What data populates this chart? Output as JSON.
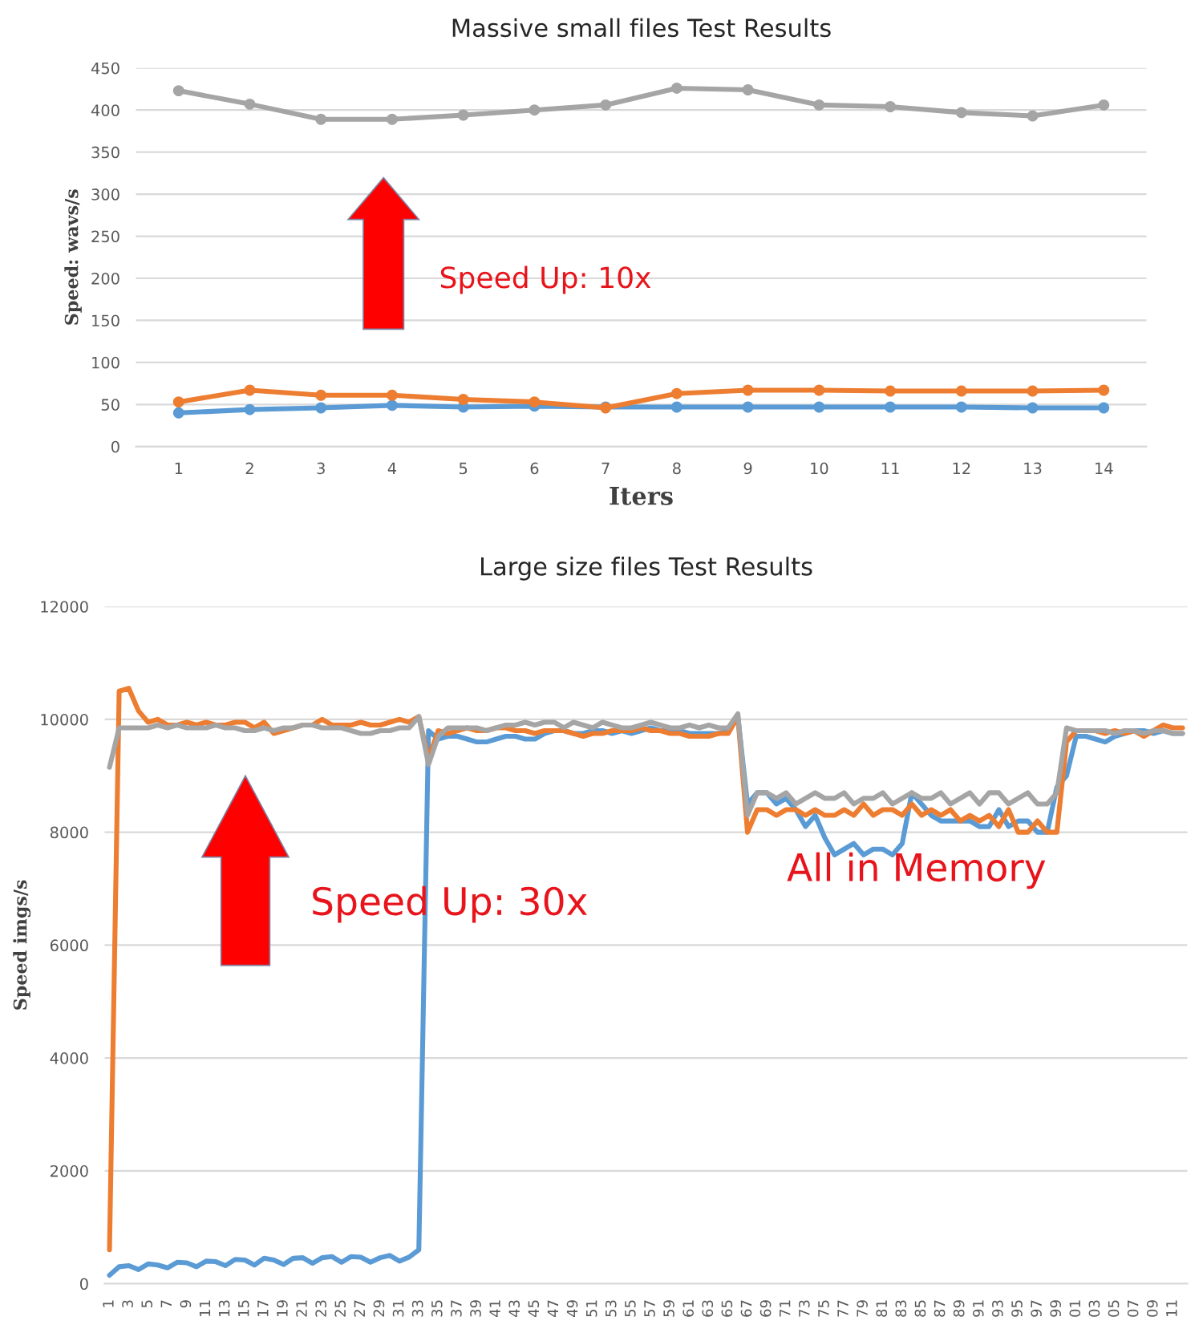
{
  "chart_data": [
    {
      "type": "line",
      "title": "Massive small files Test Results",
      "xlabel": "Iters",
      "ylabel": "Speed: wavs/s",
      "categories": [
        "1",
        "2",
        "3",
        "4",
        "5",
        "6",
        "7",
        "8",
        "9",
        "10",
        "11",
        "12",
        "13",
        "14"
      ],
      "ylim": [
        0,
        450
      ],
      "yticks": [
        0,
        50,
        100,
        150,
        200,
        250,
        300,
        350,
        400,
        450
      ],
      "grid": "y",
      "marker": "circle",
      "series": [
        {
          "color": "#5b9bd5",
          "values": [
            40,
            44,
            46,
            49,
            47,
            48,
            47,
            47,
            47,
            47,
            47,
            47,
            46,
            46
          ]
        },
        {
          "color": "#ed7d31",
          "values": [
            53,
            67,
            61,
            61,
            56,
            53,
            46,
            63,
            67,
            67,
            66,
            66,
            66,
            67
          ]
        },
        {
          "color": "#a5a5a5",
          "values": [
            423,
            407,
            389,
            389,
            394,
            400,
            406,
            426,
            424,
            406,
            404,
            397,
            393,
            406
          ]
        }
      ],
      "annotations": [
        "Speed Up: 10x"
      ]
    },
    {
      "type": "line",
      "title": "Large size files Test Results",
      "ylabel": "Speed imgs/s",
      "categories": [
        "1",
        null,
        "3",
        null,
        "5",
        null,
        "7",
        null,
        "9",
        null,
        "11",
        null,
        "13",
        null,
        "15",
        null,
        "17",
        null,
        "19",
        null,
        "21",
        null,
        "23",
        null,
        "25",
        null,
        "27",
        null,
        "29",
        null,
        "31",
        null,
        "33",
        null,
        "35",
        null,
        "37",
        null,
        "39",
        null,
        "41",
        null,
        "43",
        null,
        "45",
        null,
        "47",
        null,
        "49",
        null,
        "51",
        null,
        "53",
        null,
        "55",
        null,
        "57",
        null,
        "59",
        null,
        "61",
        null,
        "63",
        null,
        "65",
        null,
        "67",
        null,
        "69",
        null,
        "71",
        null,
        "73",
        null,
        "75",
        null,
        "77",
        null,
        "79",
        null,
        "81",
        null,
        "83",
        null,
        "85",
        null,
        "87",
        null,
        "89",
        null,
        "91",
        null,
        "93",
        null,
        "95",
        null,
        "97",
        null,
        "99",
        null,
        "01",
        null,
        "03",
        null,
        "05",
        null,
        "07",
        null,
        "09",
        null,
        "11",
        null
      ],
      "ylim": [
        0,
        12000
      ],
      "yticks": [
        0,
        2000,
        4000,
        6000,
        8000,
        10000,
        12000
      ],
      "grid": "y",
      "marker": "none",
      "series": [
        {
          "color": "#5b9bd5",
          "values": [
            150,
            300,
            320,
            250,
            350,
            330,
            280,
            380,
            370,
            300,
            400,
            390,
            320,
            430,
            420,
            330,
            450,
            420,
            340,
            450,
            460,
            360,
            460,
            480,
            380,
            480,
            470,
            380,
            460,
            500,
            400,
            470,
            600,
            9800,
            9650,
            9700,
            9700,
            9650,
            9600,
            9600,
            9650,
            9700,
            9700,
            9650,
            9650,
            9750,
            9800,
            9800,
            9750,
            9750,
            9800,
            9800,
            9750,
            9800,
            9750,
            9800,
            9850,
            9800,
            9800,
            9800,
            9750,
            9750,
            9750,
            9750,
            9800,
            10050,
            8500,
            8700,
            8700,
            8500,
            8600,
            8400,
            8100,
            8300,
            7900,
            7600,
            7700,
            7800,
            7600,
            7700,
            7700,
            7600,
            7800,
            8700,
            8500,
            8300,
            8200,
            8200,
            8200,
            8200,
            8100,
            8100,
            8400,
            8100,
            8200,
            8200,
            8000,
            8000,
            8800,
            9000,
            9700,
            9700,
            9650,
            9600,
            9700,
            9750,
            9800,
            9800,
            9750,
            9800,
            9750,
            9750
          ]
        },
        {
          "color": "#ed7d31",
          "values": [
            600,
            10500,
            10550,
            10150,
            9950,
            10000,
            9900,
            9900,
            9950,
            9900,
            9950,
            9900,
            9900,
            9950,
            9950,
            9850,
            9950,
            9750,
            9800,
            9850,
            9900,
            9900,
            10000,
            9900,
            9900,
            9900,
            9950,
            9900,
            9900,
            9950,
            10000,
            9950,
            10050,
            9300,
            9800,
            9750,
            9800,
            9850,
            9800,
            9800,
            9850,
            9850,
            9800,
            9800,
            9750,
            9800,
            9800,
            9800,
            9750,
            9700,
            9750,
            9750,
            9800,
            9800,
            9800,
            9850,
            9800,
            9800,
            9750,
            9750,
            9700,
            9700,
            9700,
            9750,
            9750,
            10050,
            8000,
            8400,
            8400,
            8300,
            8400,
            8400,
            8300,
            8400,
            8300,
            8300,
            8400,
            8300,
            8500,
            8300,
            8400,
            8400,
            8300,
            8500,
            8300,
            8400,
            8300,
            8400,
            8200,
            8300,
            8200,
            8300,
            8100,
            8400,
            8000,
            8000,
            8200,
            8000,
            8000,
            9600,
            9800,
            9800,
            9800,
            9750,
            9800,
            9750,
            9800,
            9700,
            9800,
            9900,
            9850,
            9850
          ]
        },
        {
          "color": "#a5a5a5",
          "values": [
            9150,
            9850,
            9850,
            9850,
            9850,
            9900,
            9850,
            9900,
            9850,
            9850,
            9850,
            9900,
            9850,
            9850,
            9800,
            9800,
            9850,
            9800,
            9850,
            9850,
            9900,
            9900,
            9850,
            9850,
            9850,
            9800,
            9750,
            9750,
            9800,
            9800,
            9850,
            9850,
            10050,
            9200,
            9700,
            9850,
            9850,
            9850,
            9850,
            9800,
            9850,
            9900,
            9900,
            9950,
            9900,
            9950,
            9950,
            9850,
            9950,
            9900,
            9850,
            9950,
            9900,
            9850,
            9850,
            9900,
            9950,
            9900,
            9850,
            9850,
            9900,
            9850,
            9900,
            9850,
            9850,
            10100,
            8300,
            8700,
            8700,
            8600,
            8700,
            8500,
            8600,
            8700,
            8600,
            8600,
            8700,
            8500,
            8600,
            8600,
            8700,
            8500,
            8600,
            8700,
            8600,
            8600,
            8700,
            8500,
            8600,
            8700,
            8500,
            8700,
            8700,
            8500,
            8600,
            8700,
            8500,
            8500,
            8700,
            9850,
            9800,
            9800,
            9800,
            9800,
            9750,
            9800,
            9800,
            9750,
            9800,
            9800,
            9750,
            9750
          ]
        }
      ],
      "annotations": [
        "Speed Up: 30x",
        "All in Memory"
      ]
    }
  ]
}
